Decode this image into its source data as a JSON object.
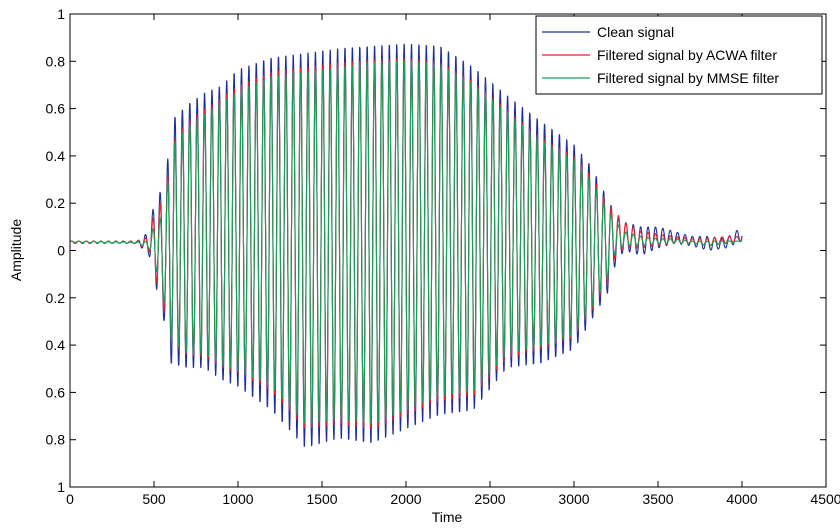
{
  "chart_data": {
    "type": "line",
    "title": "",
    "xlabel": "Time",
    "ylabel": "Amplitude",
    "xlim": [
      0,
      4500
    ],
    "ylim": [
      -1,
      1
    ],
    "grid": false,
    "legend_position": "top-right",
    "x_ticks": [
      0,
      500,
      1000,
      1500,
      2000,
      2500,
      3000,
      3500,
      4000,
      4500
    ],
    "x_tick_labels": [
      "0",
      "500",
      "1000",
      "1500",
      "2000",
      "2500",
      "3000",
      "3500",
      "4000",
      "4500"
    ],
    "y_ticks": [
      -1,
      -0.8,
      -0.6,
      -0.4,
      -0.2,
      0,
      0.2,
      0.4,
      0.6,
      0.8,
      1
    ],
    "y_tick_labels": [
      "1",
      "0.8",
      "0.6",
      "0.4",
      "0.2",
      "0",
      "0.2",
      "0.4",
      "0.6",
      "0.8",
      "1"
    ],
    "signal_period": 44,
    "series": [
      {
        "name": "Clean signal",
        "color": "#1f2f9a",
        "envelope_x": [
          0,
          400,
          470,
          520,
          560,
          600,
          700,
          800,
          900,
          1000,
          1200,
          1400,
          1600,
          1800,
          2000,
          2200,
          2400,
          2600,
          2800,
          3000,
          3100,
          3200,
          3250,
          3300,
          3400,
          3500,
          3600,
          3700,
          3800,
          3900,
          4000
        ],
        "envelope_upper": [
          0.04,
          0.04,
          0.08,
          0.28,
          0.2,
          0.55,
          0.62,
          0.67,
          0.7,
          0.77,
          0.82,
          0.84,
          0.86,
          0.87,
          0.88,
          0.87,
          0.78,
          0.66,
          0.55,
          0.45,
          0.36,
          0.22,
          0.15,
          0.12,
          0.1,
          0.1,
          0.08,
          0.06,
          0.06,
          0.05,
          0.1
        ],
        "envelope_lower": [
          0.03,
          0.03,
          -0.02,
          -0.18,
          -0.3,
          -0.48,
          -0.5,
          -0.5,
          -0.55,
          -0.58,
          -0.68,
          -0.84,
          -0.8,
          -0.82,
          -0.76,
          -0.7,
          -0.68,
          -0.5,
          -0.48,
          -0.42,
          -0.3,
          -0.18,
          -0.05,
          0,
          -0.02,
          0.01,
          0.03,
          0.02,
          0,
          0.01,
          0.04
        ]
      },
      {
        "name": "Filtered signal by ACWA filter",
        "color": "#e8222a",
        "envelope_x": [
          0,
          400,
          470,
          520,
          560,
          600,
          700,
          800,
          900,
          1000,
          1200,
          1400,
          1600,
          1800,
          2000,
          2200,
          2400,
          2600,
          2800,
          3000,
          3100,
          3200,
          3250,
          3300,
          3400,
          3500,
          3600,
          3700,
          3800,
          3900,
          4000
        ],
        "envelope_upper": [
          0.04,
          0.04,
          0.06,
          0.22,
          0.17,
          0.45,
          0.55,
          0.6,
          0.65,
          0.7,
          0.76,
          0.78,
          0.8,
          0.81,
          0.82,
          0.8,
          0.72,
          0.6,
          0.48,
          0.4,
          0.32,
          0.2,
          0.16,
          0.12,
          0.08,
          0.07,
          0.06,
          0.05,
          0.05,
          0.06,
          0.06
        ],
        "envelope_lower": [
          0.03,
          0.03,
          0,
          -0.15,
          -0.26,
          -0.38,
          -0.45,
          -0.45,
          -0.5,
          -0.52,
          -0.6,
          -0.76,
          -0.74,
          -0.76,
          -0.7,
          -0.64,
          -0.62,
          -0.46,
          -0.42,
          -0.37,
          -0.26,
          -0.14,
          -0.02,
          0.01,
          0.01,
          0.02,
          0.03,
          0.03,
          0.02,
          0.03,
          0.04
        ]
      },
      {
        "name": "Filtered signal by MMSE filter",
        "color": "#18a05a",
        "envelope_x": [
          0,
          400,
          470,
          520,
          560,
          600,
          700,
          800,
          900,
          1000,
          1200,
          1400,
          1600,
          1800,
          2000,
          2200,
          2400,
          2600,
          2800,
          3000,
          3100,
          3200,
          3250,
          3300,
          3400,
          3500,
          3600,
          3700,
          3800,
          3900,
          4000
        ],
        "envelope_upper": [
          0.04,
          0.035,
          0.04,
          0.15,
          0.12,
          0.44,
          0.53,
          0.58,
          0.63,
          0.68,
          0.74,
          0.76,
          0.78,
          0.8,
          0.81,
          0.79,
          0.71,
          0.59,
          0.47,
          0.39,
          0.3,
          0.18,
          0.12,
          0.08,
          0.06,
          0.05,
          0.05,
          0.04,
          0.04,
          0.04,
          0.04
        ],
        "envelope_lower": [
          0.035,
          0.03,
          0.01,
          -0.1,
          -0.22,
          -0.38,
          -0.44,
          -0.44,
          -0.49,
          -0.51,
          -0.58,
          -0.74,
          -0.72,
          -0.74,
          -0.68,
          -0.62,
          -0.6,
          -0.44,
          -0.41,
          -0.36,
          -0.25,
          -0.12,
          0,
          0.02,
          0.02,
          0.03,
          0.03,
          0.03,
          0.02,
          0.03,
          0.04
        ]
      }
    ]
  }
}
